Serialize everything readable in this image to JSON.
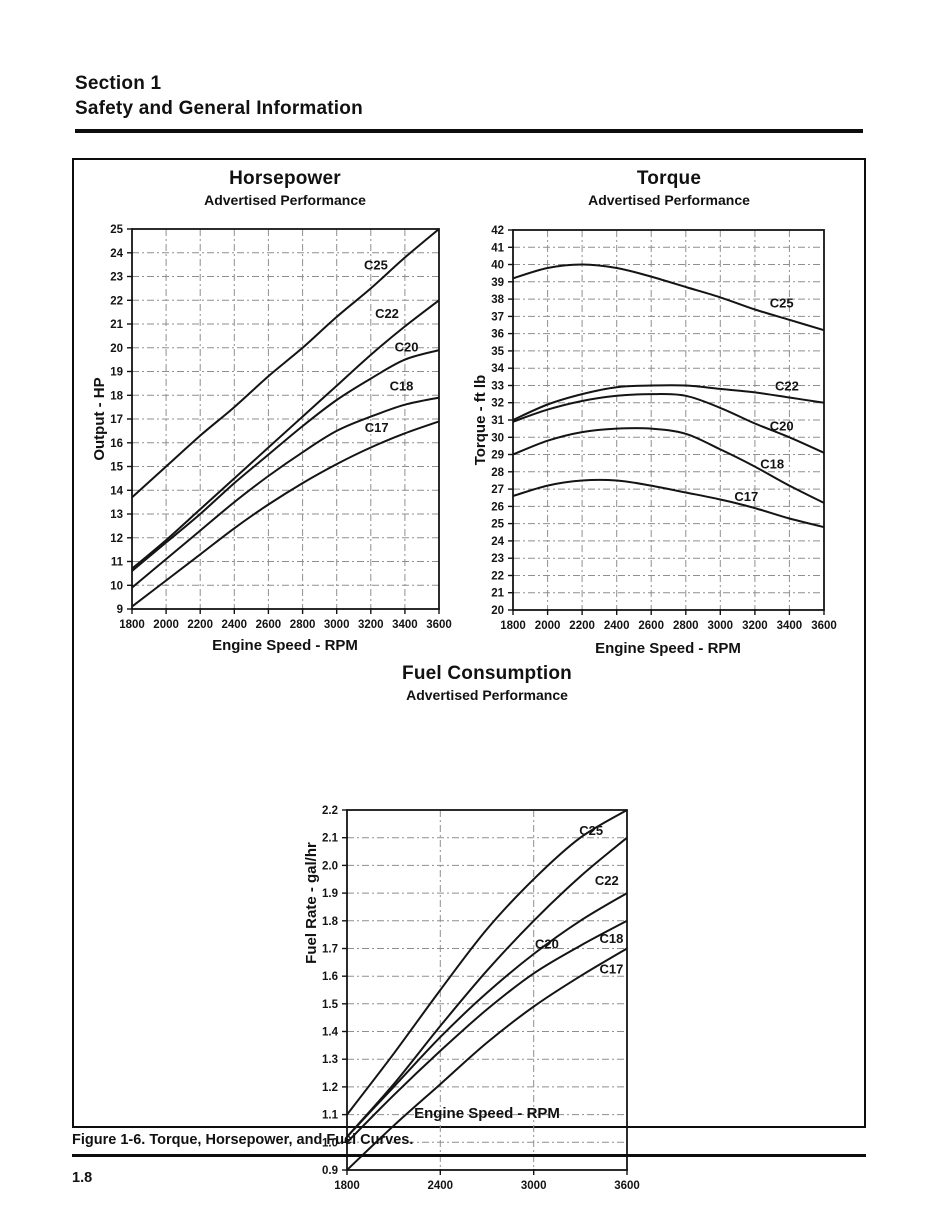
{
  "page": {
    "section_line1": "Section 1",
    "section_line2": "Safety and General Information",
    "caption": "Figure 1-6. Torque, Horsepower, and Fuel Curves.",
    "page_number": "1.8"
  },
  "chart_data": [
    {
      "id": "horsepower",
      "type": "line",
      "title": "Horsepower",
      "subtitle": "Advertised Performance",
      "xlabel": "Engine Speed - RPM",
      "ylabel": "Output - HP",
      "grid": true,
      "xlim": [
        1800,
        3600
      ],
      "ylim": [
        9,
        25
      ],
      "x_tick_step": 200,
      "y_tick_step": 1,
      "x": [
        1800,
        2000,
        2200,
        2400,
        2600,
        2800,
        3000,
        3200,
        3400,
        3600
      ],
      "series": [
        {
          "name": "C25",
          "values": [
            13.7,
            15.0,
            16.3,
            17.5,
            18.8,
            20.0,
            21.3,
            22.5,
            23.8,
            25.0
          ],
          "label_at": [
            3230,
            23.3
          ]
        },
        {
          "name": "C22",
          "values": [
            10.7,
            11.9,
            13.2,
            14.5,
            15.8,
            17.1,
            18.4,
            19.7,
            20.9,
            22.0
          ],
          "label_at": [
            3295,
            21.25
          ]
        },
        {
          "name": "C20",
          "values": [
            10.6,
            11.8,
            13.0,
            14.3,
            15.5,
            16.7,
            17.8,
            18.7,
            19.5,
            19.9
          ],
          "label_at": [
            3410,
            19.85
          ]
        },
        {
          "name": "C18",
          "values": [
            9.9,
            11.1,
            12.3,
            13.5,
            14.6,
            15.6,
            16.5,
            17.1,
            17.6,
            17.9
          ],
          "label_at": [
            3380,
            18.2
          ]
        },
        {
          "name": "C17",
          "values": [
            9.1,
            10.2,
            11.3,
            12.4,
            13.4,
            14.3,
            15.1,
            15.8,
            16.4,
            16.9
          ],
          "label_at": [
            3235,
            16.45
          ]
        }
      ]
    },
    {
      "id": "torque",
      "type": "line",
      "title": "Torque",
      "subtitle": "Advertised Performance",
      "xlabel": "Engine Speed - RPM",
      "ylabel": "Torque - ft lb",
      "grid": true,
      "xlim": [
        1800,
        3600
      ],
      "ylim": [
        20,
        42
      ],
      "x_tick_step": 200,
      "y_tick_step": 1,
      "x": [
        1800,
        2000,
        2200,
        2400,
        2600,
        2800,
        3000,
        3200,
        3400,
        3600
      ],
      "series": [
        {
          "name": "C25",
          "values": [
            39.2,
            39.8,
            40.0,
            39.8,
            39.3,
            38.7,
            38.1,
            37.4,
            36.8,
            36.2
          ],
          "label_at": [
            3355,
            37.5
          ]
        },
        {
          "name": "C22",
          "values": [
            31.0,
            31.9,
            32.5,
            32.9,
            33.0,
            33.0,
            32.8,
            32.6,
            32.3,
            32.0
          ],
          "label_at": [
            3385,
            32.7
          ]
        },
        {
          "name": "C20",
          "values": [
            30.9,
            31.6,
            32.1,
            32.4,
            32.5,
            32.4,
            31.7,
            30.8,
            30.0,
            29.1
          ],
          "label_at": [
            3355,
            30.4
          ]
        },
        {
          "name": "C18",
          "values": [
            29.0,
            29.8,
            30.3,
            30.5,
            30.5,
            30.2,
            29.3,
            28.3,
            27.2,
            26.2
          ],
          "label_at": [
            3300,
            28.2
          ]
        },
        {
          "name": "C17",
          "values": [
            26.6,
            27.2,
            27.5,
            27.5,
            27.2,
            26.8,
            26.4,
            25.9,
            25.3,
            24.8
          ],
          "label_at": [
            3150,
            26.3
          ]
        }
      ]
    },
    {
      "id": "fuel",
      "type": "line",
      "title": "Fuel Consumption",
      "subtitle": "Advertised Performance",
      "xlabel": "Engine Speed - RPM",
      "ylabel": "Fuel Rate - gal/hr",
      "grid": true,
      "xlim": [
        1800,
        3600
      ],
      "ylim": [
        0.9,
        2.2
      ],
      "x_tick_step": 600,
      "y_tick_step": 0.1,
      "x": [
        1800,
        2100,
        2400,
        2700,
        3000,
        3300,
        3600
      ],
      "series": [
        {
          "name": "C25",
          "values": [
            1.1,
            1.32,
            1.55,
            1.77,
            1.95,
            2.1,
            2.2
          ],
          "label_at": [
            3370,
            2.11
          ]
        },
        {
          "name": "C22",
          "values": [
            1.02,
            1.21,
            1.42,
            1.62,
            1.8,
            1.96,
            2.1
          ],
          "label_at": [
            3470,
            1.93
          ]
        },
        {
          "name": "C20",
          "values": [
            1.02,
            1.2,
            1.38,
            1.54,
            1.68,
            1.8,
            1.9
          ],
          "label_at": [
            3085,
            1.7
          ]
        },
        {
          "name": "C18",
          "values": [
            1.0,
            1.17,
            1.33,
            1.48,
            1.61,
            1.71,
            1.8
          ],
          "label_at": [
            3500,
            1.72
          ]
        },
        {
          "name": "C17",
          "values": [
            0.9,
            1.06,
            1.21,
            1.36,
            1.49,
            1.6,
            1.7
          ],
          "label_at": [
            3500,
            1.61
          ]
        }
      ]
    }
  ]
}
